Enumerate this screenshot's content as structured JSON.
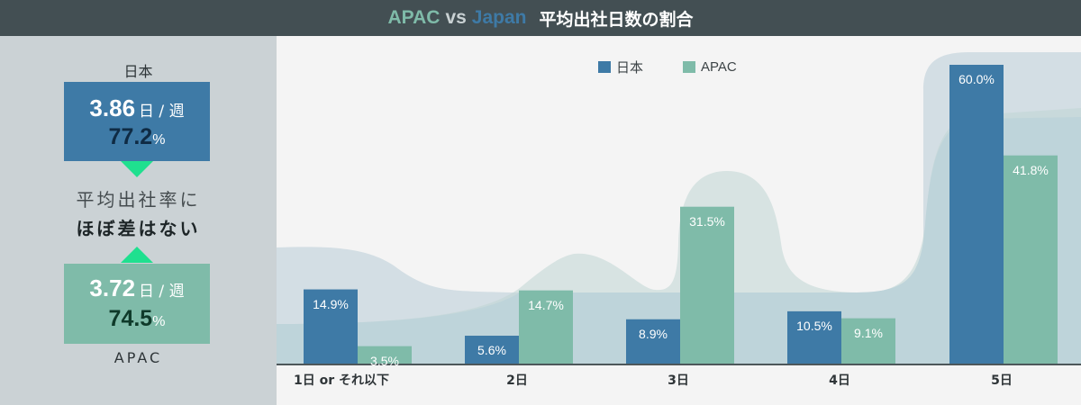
{
  "header": {
    "title_apac": "APAC",
    "title_vs": "vs",
    "title_japan": "Japan",
    "title_jp": "平均出社日数の割合"
  },
  "sidebar": {
    "japan_label": "日本",
    "japan_days": "3.86",
    "japan_unit": "日 / 週",
    "japan_pct": "77.2",
    "pct_symbol": "%",
    "middle_line1": "平均出社率に",
    "middle_line2": "ほぼ差はない",
    "apac_days": "3.72",
    "apac_unit": "日 / 週",
    "apac_pct": "74.5",
    "apac_label": "APAC"
  },
  "colors": {
    "japan": "#3e7aa6",
    "apac": "#7fbba9",
    "accent_triangle": "#1fe08f",
    "header_bg": "#434f53"
  },
  "chart_data": {
    "type": "bar",
    "title": "APAC vs Japan 平均出社日数の割合",
    "xlabel": "",
    "ylabel": "",
    "categories": [
      "1日 or それ以下",
      "2日",
      "3日",
      "4日",
      "5日"
    ],
    "series": [
      {
        "name": "日本",
        "values": [
          14.9,
          5.6,
          8.9,
          10.5,
          60.0
        ]
      },
      {
        "name": "APAC",
        "values": [
          3.5,
          14.7,
          31.5,
          9.1,
          41.8
        ]
      }
    ],
    "value_labels": {
      "日本": [
        "14.9%",
        "5.6%",
        "8.9%",
        "10.5%",
        "60.0%"
      ],
      "APAC": [
        "3.5%",
        "14.7%",
        "31.5%",
        "9.1%",
        "41.8%"
      ]
    },
    "legend_position": "top",
    "grid": false,
    "ylim": [
      0,
      60
    ]
  }
}
